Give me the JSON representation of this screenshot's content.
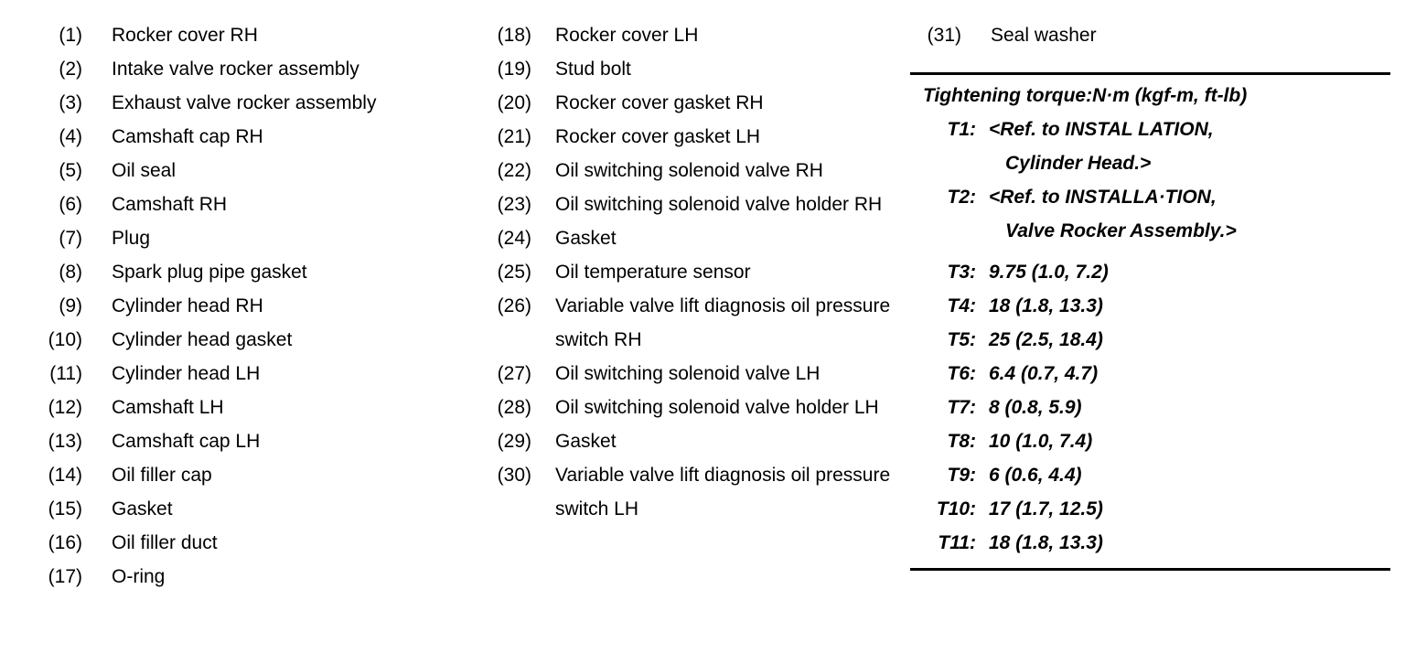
{
  "page": {
    "background": "#ffffff",
    "text_color": "#000000"
  },
  "columns": [
    {
      "items": [
        {
          "num": "(1)",
          "label": "Rocker cover RH"
        },
        {
          "num": "(2)",
          "label": "Intake valve rocker assembly"
        },
        {
          "num": "(3)",
          "label": "Exhaust valve rocker assembly"
        },
        {
          "num": "(4)",
          "label": "Camshaft cap RH"
        },
        {
          "num": "(5)",
          "label": "Oil seal"
        },
        {
          "num": "(6)",
          "label": "Camshaft RH"
        },
        {
          "num": "(7)",
          "label": "Plug"
        },
        {
          "num": "(8)",
          "label": "Spark plug pipe gasket"
        },
        {
          "num": "(9)",
          "label": "Cylinder head RH"
        },
        {
          "num": "(10)",
          "label": "Cylinder head gasket"
        },
        {
          "num": "(11)",
          "label": "Cylinder head LH"
        },
        {
          "num": "(12)",
          "label": "Camshaft LH"
        },
        {
          "num": "(13)",
          "label": "Camshaft cap LH"
        },
        {
          "num": "(14)",
          "label": "Oil filler cap"
        },
        {
          "num": "(15)",
          "label": "Gasket"
        },
        {
          "num": "(16)",
          "label": "Oil filler duct"
        },
        {
          "num": "(17)",
          "label": "O-ring"
        }
      ]
    },
    {
      "items": [
        {
          "num": "(18)",
          "label": "Rocker cover LH"
        },
        {
          "num": "(19)",
          "label": "Stud bolt"
        },
        {
          "num": "(20)",
          "label": "Rocker cover gasket RH"
        },
        {
          "num": "(21)",
          "label": "Rocker cover gasket LH"
        },
        {
          "num": "(22)",
          "label": "Oil switching solenoid valve RH"
        },
        {
          "num": "(23)",
          "label": "Oil switching solenoid valve holder RH"
        },
        {
          "num": "(24)",
          "label": "Gasket"
        },
        {
          "num": "(25)",
          "label": "Oil temperature sensor"
        },
        {
          "num": "(26)",
          "label": "Variable valve lift diagnosis oil pressure switch RH"
        },
        {
          "num": "(27)",
          "label": "Oil switching solenoid valve LH"
        },
        {
          "num": "(28)",
          "label": "Oil switching solenoid valve holder LH"
        },
        {
          "num": "(29)",
          "label": "Gasket"
        },
        {
          "num": "(30)",
          "label": "Variable valve lift diagnosis oil pressure switch LH"
        }
      ]
    },
    {
      "items": [
        {
          "num": "(31)",
          "label": "Seal washer"
        }
      ]
    }
  ],
  "torque": {
    "heading": "Tightening torque:N·m (kgf-m, ft-lb)",
    "rows": [
      {
        "id": "T1:",
        "lines": [
          "<Ref. to INSTAL LATION,",
          "Cylinder Head.>"
        ]
      },
      {
        "id": "T2:",
        "lines": [
          "<Ref. to INSTALLA·TION,",
          "Valve Rocker Assembly.>"
        ]
      },
      {
        "id": "T3:",
        "lines": [
          "9.75 (1.0, 7.2)"
        ]
      },
      {
        "id": "T4:",
        "lines": [
          "18 (1.8, 13.3)"
        ]
      },
      {
        "id": "T5:",
        "lines": [
          "25 (2.5, 18.4)"
        ]
      },
      {
        "id": "T6:",
        "lines": [
          "6.4 (0.7, 4.7)"
        ]
      },
      {
        "id": "T7:",
        "lines": [
          "8 (0.8, 5.9)"
        ]
      },
      {
        "id": "T8:",
        "lines": [
          "10 (1.0, 7.4)"
        ]
      },
      {
        "id": "T9:",
        "lines": [
          "6 (0.6, 4.4)"
        ]
      },
      {
        "id": "T10:",
        "lines": [
          "17 (1.7, 12.5)"
        ]
      },
      {
        "id": "T11:",
        "lines": [
          "18 (1.8, 13.3)"
        ]
      }
    ]
  }
}
